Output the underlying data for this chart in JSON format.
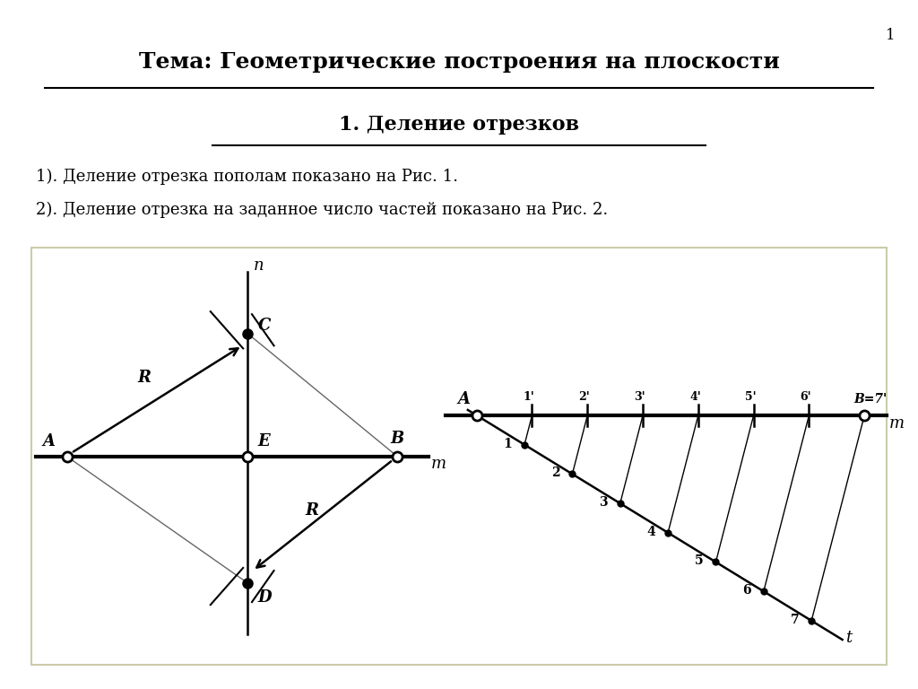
{
  "title1": "Тема: Геометрические построения на плоскости",
  "title2": "1. Деление отрезков",
  "text_line1": "1). Деление отрезка пополам показано на Рис. 1.",
  "text_line2": "2). Деление отрезка на заданное число частей показано на Рис. 2.",
  "bg_color": "#FFFFFF",
  "header1_color": "#FF6600",
  "header2_color": "#FF6600",
  "text_bg_color": "#CCF5FF",
  "diagram_bg_color": "#FFFFCC",
  "page_num": "1"
}
